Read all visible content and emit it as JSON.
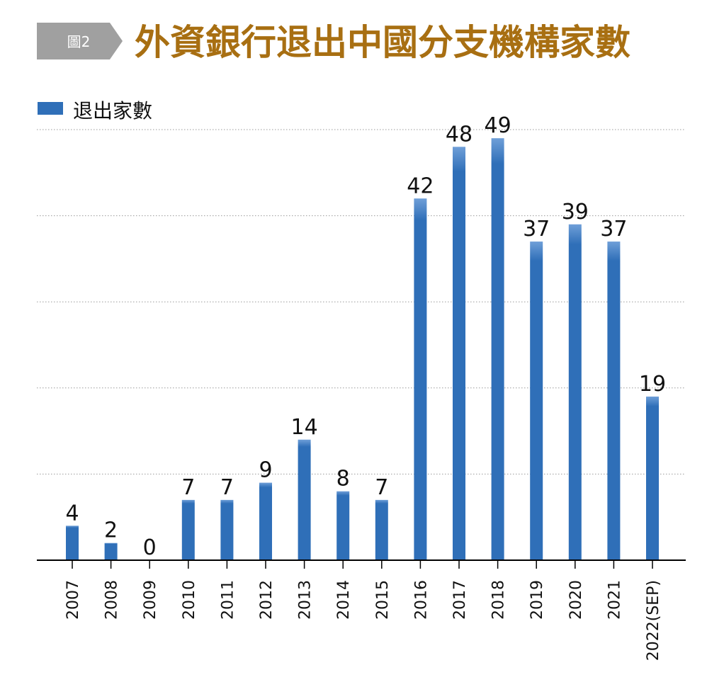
{
  "header": {
    "figure_tag": "圖2",
    "title": "外資銀行退出中國分支機構家數"
  },
  "colors": {
    "bar": "#2f6fb8",
    "bar_highlight": "#6f9fd8",
    "title": "#a86f12",
    "tag_bg": "#a0a0a0",
    "grid": "#9a9a9a",
    "axis": "#000000"
  },
  "chart_data": {
    "type": "bar",
    "title": "外資銀行退出中國分支機構家數",
    "categories": [
      "2007",
      "2008",
      "2009",
      "2010",
      "2011",
      "2012",
      "2013",
      "2014",
      "2015",
      "2016",
      "2017",
      "2018",
      "2019",
      "2020",
      "2021",
      "2022(SEP)"
    ],
    "series": [
      {
        "name": "退出家數",
        "values": [
          4,
          2,
          0,
          7,
          7,
          9,
          14,
          8,
          7,
          42,
          48,
          49,
          37,
          39,
          37,
          19
        ]
      }
    ],
    "ylim": [
      0,
      50
    ],
    "grid": true,
    "legend": "top-left",
    "data_labels": true,
    "xlabel": "",
    "ylabel": ""
  }
}
